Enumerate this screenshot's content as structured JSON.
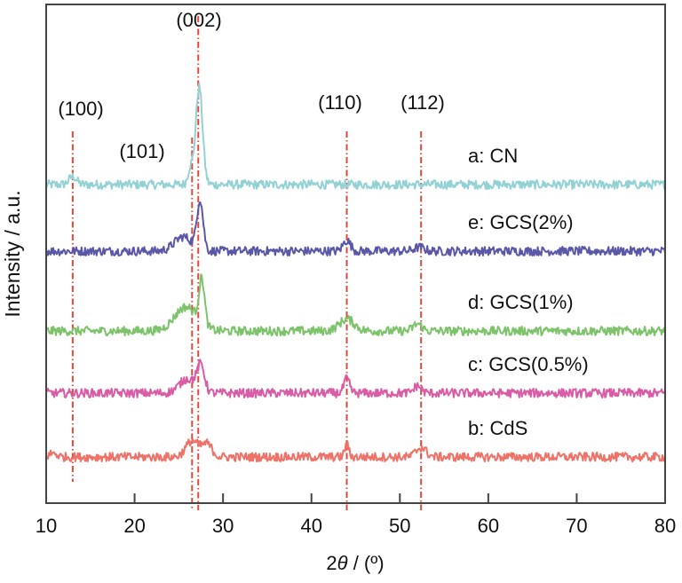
{
  "chart_data": {
    "type": "line",
    "title": "",
    "xlabel_prefix": "2",
    "xlabel_theta": "θ",
    "xlabel_suffix": " / (º)",
    "ylabel": "Intensity / a.u.",
    "xlim": [
      10,
      80
    ],
    "xticks": [
      10,
      20,
      30,
      40,
      50,
      60,
      70,
      80
    ],
    "grid": false,
    "series": [
      {
        "name": "a: CN",
        "color": "#93d2d4",
        "offset": 4,
        "peaks": [
          {
            "x": 13.0,
            "h": 0.25,
            "w": 0.6
          },
          {
            "x": 27.3,
            "h": 3.05,
            "w": 0.55
          },
          {
            "x": 26.3,
            "h": 0.5,
            "w": 0.4
          }
        ]
      },
      {
        "name": "e: GCS(2%)",
        "color": "#5b57a8",
        "offset": 3,
        "peaks": [
          {
            "x": 27.4,
            "h": 1.55,
            "w": 0.5
          },
          {
            "x": 25.5,
            "h": 0.45,
            "w": 1.4
          },
          {
            "x": 44.0,
            "h": 0.33,
            "w": 0.6
          },
          {
            "x": 52.2,
            "h": 0.12,
            "w": 0.8
          }
        ]
      },
      {
        "name": "d: GCS(1%)",
        "color": "#7cc36a",
        "offset": 2,
        "peaks": [
          {
            "x": 27.6,
            "h": 1.4,
            "w": 0.45
          },
          {
            "x": 25.8,
            "h": 0.75,
            "w": 1.8
          },
          {
            "x": 44.0,
            "h": 0.37,
            "w": 1.2
          },
          {
            "x": 52.0,
            "h": 0.22,
            "w": 0.7
          }
        ]
      },
      {
        "name": "c: GCS(0.5%)",
        "color": "#d95ca6",
        "offset": 1,
        "peaks": [
          {
            "x": 27.5,
            "h": 0.8,
            "w": 0.6
          },
          {
            "x": 26.0,
            "h": 0.45,
            "w": 1.3
          },
          {
            "x": 44.0,
            "h": 0.45,
            "w": 0.45
          },
          {
            "x": 52.0,
            "h": 0.23,
            "w": 0.6
          }
        ]
      },
      {
        "name": "b: CdS",
        "color": "#ee7268",
        "offset": 0,
        "peaks": [
          {
            "x": 26.5,
            "h": 0.5,
            "w": 1.0
          },
          {
            "x": 28.2,
            "h": 0.4,
            "w": 0.8
          },
          {
            "x": 44.0,
            "h": 0.37,
            "w": 0.35
          },
          {
            "x": 52.4,
            "h": 0.3,
            "w": 0.8
          },
          {
            "x": 10.8,
            "h": 0.12,
            "w": 0.6
          }
        ]
      }
    ],
    "reference_lines": [
      {
        "label": "(100)",
        "x": 13.0
      },
      {
        "label": "(101)",
        "x": 26.5
      },
      {
        "label": "(002)",
        "x": 27.2
      },
      {
        "label": "(110)",
        "x": 44.0
      },
      {
        "label": "(112)",
        "x": 52.4
      }
    ],
    "reference_line_color": "#e0483c"
  }
}
